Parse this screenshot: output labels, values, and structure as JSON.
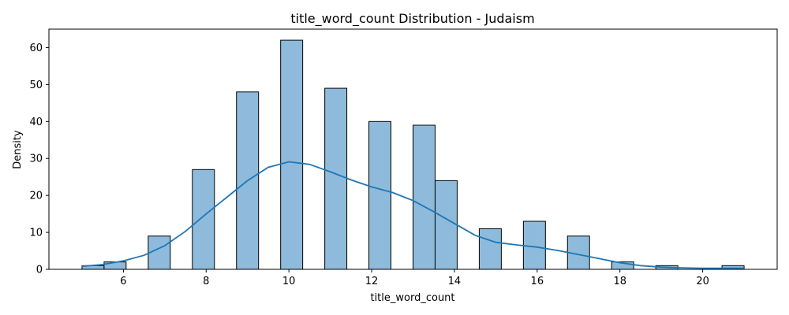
{
  "chart_data": {
    "type": "bar",
    "title": "title_word_count Distribution - Judaism",
    "xlabel": "title_word_count",
    "ylabel": "Density",
    "xlim": [
      4.2,
      21.8
    ],
    "ylim": [
      0,
      65
    ],
    "x_ticks": [
      6,
      8,
      10,
      12,
      14,
      16,
      18,
      20
    ],
    "y_ticks": [
      0,
      10,
      20,
      30,
      40,
      50,
      60
    ],
    "bin_width": 0.533,
    "bins": [
      {
        "x": 5.0,
        "count": 1
      },
      {
        "x": 5.533,
        "count": 2
      },
      {
        "x": 6.6,
        "count": 9
      },
      {
        "x": 7.667,
        "count": 27
      },
      {
        "x": 8.733,
        "count": 48
      },
      {
        "x": 9.8,
        "count": 62
      },
      {
        "x": 10.867,
        "count": 49
      },
      {
        "x": 11.933,
        "count": 40
      },
      {
        "x": 13.0,
        "count": 39
      },
      {
        "x": 13.533,
        "count": 24
      },
      {
        "x": 14.6,
        "count": 11
      },
      {
        "x": 15.667,
        "count": 13
      },
      {
        "x": 16.733,
        "count": 9
      },
      {
        "x": 17.8,
        "count": 2
      },
      {
        "x": 18.867,
        "count": 1
      },
      {
        "x": 20.467,
        "count": 1
      }
    ],
    "kde": {
      "x": [
        5.0,
        5.5,
        6.0,
        6.5,
        7.0,
        7.5,
        8.0,
        8.5,
        9.0,
        9.5,
        10.0,
        10.5,
        11.0,
        11.5,
        12.0,
        12.5,
        13.0,
        13.5,
        14.0,
        14.5,
        15.0,
        15.5,
        16.0,
        16.5,
        17.0,
        17.5,
        18.0,
        18.5,
        19.0,
        19.5,
        20.0,
        20.5,
        21.0
      ],
      "y": [
        0.8,
        1.3,
        2.3,
        3.8,
        6.4,
        10.3,
        15.0,
        19.5,
        24.0,
        27.6,
        29.1,
        28.4,
        26.4,
        24.2,
        22.3,
        20.8,
        18.6,
        15.6,
        12.4,
        9.2,
        7.3,
        6.6,
        6.0,
        5.1,
        4.0,
        2.9,
        1.8,
        1.0,
        0.6,
        0.4,
        0.3,
        0.3,
        0.3
      ]
    },
    "bar_color": "#8ebbdc",
    "bar_edge": "#000000",
    "line_color": "#1f77b4",
    "grid": false
  }
}
